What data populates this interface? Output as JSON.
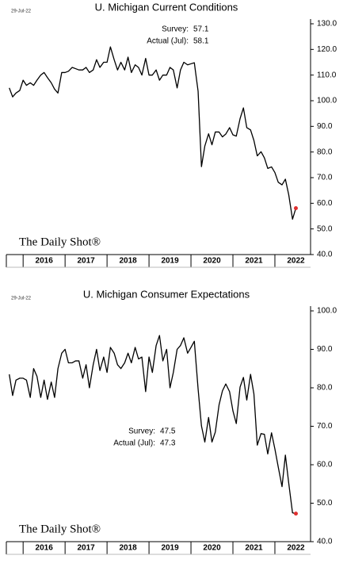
{
  "chart_data": [
    {
      "type": "line",
      "date": "29-Jul-22",
      "title": "U. Michigan Current Conditions",
      "annotations": [
        {
          "label": "Survey:",
          "value": 57.1
        },
        {
          "label": "Actual (Jul):",
          "value": 58.1
        }
      ],
      "logo": "The Daily Shot®",
      "x": [
        2015.67,
        2015.75,
        2015.83,
        2015.92,
        2016.0,
        2016.08,
        2016.17,
        2016.25,
        2016.33,
        2016.42,
        2016.5,
        2016.58,
        2016.67,
        2016.75,
        2016.83,
        2016.92,
        2017.0,
        2017.08,
        2017.17,
        2017.25,
        2017.33,
        2017.42,
        2017.5,
        2017.58,
        2017.67,
        2017.75,
        2017.83,
        2017.92,
        2018.0,
        2018.08,
        2018.17,
        2018.25,
        2018.33,
        2018.42,
        2018.5,
        2018.58,
        2018.67,
        2018.75,
        2018.83,
        2018.92,
        2019.0,
        2019.08,
        2019.17,
        2019.25,
        2019.33,
        2019.42,
        2019.5,
        2019.58,
        2019.67,
        2019.75,
        2019.83,
        2019.92,
        2020.0,
        2020.08,
        2020.17,
        2020.25,
        2020.33,
        2020.42,
        2020.5,
        2020.58,
        2020.67,
        2020.75,
        2020.83,
        2020.92,
        2021.0,
        2021.08,
        2021.17,
        2021.25,
        2021.33,
        2021.42,
        2021.5,
        2021.58,
        2021.67,
        2021.75,
        2021.83,
        2021.92,
        2022.0,
        2022.08,
        2022.17,
        2022.25,
        2022.33,
        2022.42,
        2022.5
      ],
      "values": [
        105,
        101.5,
        103,
        104,
        108,
        106,
        107,
        106,
        108,
        110,
        111,
        109,
        107,
        104.5,
        103,
        111,
        111,
        111.5,
        113,
        112.5,
        112,
        112,
        113,
        111,
        112,
        116,
        113,
        115,
        115,
        121,
        116,
        112,
        115,
        112,
        117,
        111,
        114,
        113,
        110,
        116.5,
        110,
        110,
        112,
        108,
        110,
        110,
        113,
        112,
        105,
        112,
        115,
        114,
        114.4,
        114.8,
        103.7,
        74.3,
        82.3,
        87.1,
        82.8,
        87.8,
        87.8,
        85.9,
        87,
        89.5,
        86.7,
        86.2,
        93,
        97.2,
        89.5,
        88.6,
        84.5,
        78.5,
        80.1,
        77.7,
        73.6,
        74.2,
        72,
        68.2,
        67.2,
        69.4,
        63.3,
        53.8,
        58.1
      ],
      "color": "#000000",
      "last_point_color": "#e03030",
      "xlim": [
        2015.6,
        2022.85
      ],
      "xticks": [
        2016,
        2017,
        2018,
        2019,
        2020,
        2021,
        2022
      ],
      "ylim": [
        40,
        130
      ],
      "yticks": [
        {
          "value": 40,
          "label": "40.0"
        },
        {
          "value": 50,
          "label": "50.0"
        },
        {
          "value": 60,
          "label": "60.0"
        },
        {
          "value": 70,
          "label": "70.0"
        },
        {
          "value": 80,
          "label": "80.0"
        },
        {
          "value": 90,
          "label": "90.0"
        },
        {
          "value": 100,
          "label": "100.0"
        },
        {
          "value": 110,
          "label": "110.0"
        },
        {
          "value": 120,
          "label": "120.0"
        },
        {
          "value": 130,
          "label": "130.0"
        }
      ]
    },
    {
      "type": "line",
      "date": "29-Jul-22",
      "title": "U. Michigan Consumer Expectations",
      "annotations": [
        {
          "label": "Survey:",
          "value": 47.5
        },
        {
          "label": "Actual (Jul):",
          "value": 47.3
        }
      ],
      "logo": "The Daily Shot®",
      "x": [
        2015.67,
        2015.75,
        2015.83,
        2015.92,
        2016.0,
        2016.08,
        2016.17,
        2016.25,
        2016.33,
        2016.42,
        2016.5,
        2016.58,
        2016.67,
        2016.75,
        2016.83,
        2016.92,
        2017.0,
        2017.08,
        2017.17,
        2017.25,
        2017.33,
        2017.42,
        2017.5,
        2017.58,
        2017.67,
        2017.75,
        2017.83,
        2017.92,
        2018.0,
        2018.08,
        2018.17,
        2018.25,
        2018.33,
        2018.42,
        2018.5,
        2018.58,
        2018.67,
        2018.75,
        2018.83,
        2018.92,
        2019.0,
        2019.08,
        2019.17,
        2019.25,
        2019.33,
        2019.42,
        2019.5,
        2019.58,
        2019.67,
        2019.75,
        2019.83,
        2019.92,
        2020.0,
        2020.08,
        2020.17,
        2020.25,
        2020.33,
        2020.42,
        2020.5,
        2020.58,
        2020.67,
        2020.75,
        2020.83,
        2020.92,
        2021.0,
        2021.08,
        2021.17,
        2021.25,
        2021.33,
        2021.42,
        2021.5,
        2021.58,
        2021.67,
        2021.75,
        2021.83,
        2021.92,
        2022.0,
        2022.08,
        2022.17,
        2022.25,
        2022.33,
        2022.42,
        2022.5
      ],
      "values": [
        83.5,
        78,
        82,
        82.5,
        82.5,
        82,
        77.5,
        85,
        83,
        77.5,
        82,
        77,
        81.5,
        77.5,
        85,
        89,
        90,
        86.5,
        86.5,
        87,
        87,
        82.5,
        86,
        80,
        86,
        90,
        84.5,
        88,
        84,
        90.5,
        89,
        86,
        85,
        86.5,
        89,
        86.5,
        90.5,
        87.5,
        88,
        79,
        88,
        84,
        91,
        93.6,
        87,
        90,
        80,
        84,
        90,
        91,
        93,
        89,
        90.5,
        92.1,
        79.7,
        70.1,
        65.9,
        72.3,
        65.9,
        68.5,
        75.6,
        79.2,
        81,
        79,
        74,
        70.7,
        80.2,
        82.7,
        76.8,
        83.5,
        78.4,
        65.1,
        68.1,
        67.9,
        62.8,
        68.3,
        64.1,
        59.4,
        54.3,
        62.5,
        55.2,
        47.5,
        47.3
      ],
      "color": "#000000",
      "last_point_color": "#e03030",
      "xlim": [
        2015.6,
        2022.85
      ],
      "xticks": [
        2016,
        2017,
        2018,
        2019,
        2020,
        2021,
        2022
      ],
      "ylim": [
        40,
        100
      ],
      "yticks": [
        {
          "value": 40,
          "label": "40.0"
        },
        {
          "value": 50,
          "label": "50.0"
        },
        {
          "value": 60,
          "label": "60.0"
        },
        {
          "value": 70,
          "label": "70.0"
        },
        {
          "value": 80,
          "label": "80.0"
        },
        {
          "value": 90,
          "label": "90.0"
        },
        {
          "value": 100,
          "label": "100.0"
        }
      ]
    }
  ]
}
